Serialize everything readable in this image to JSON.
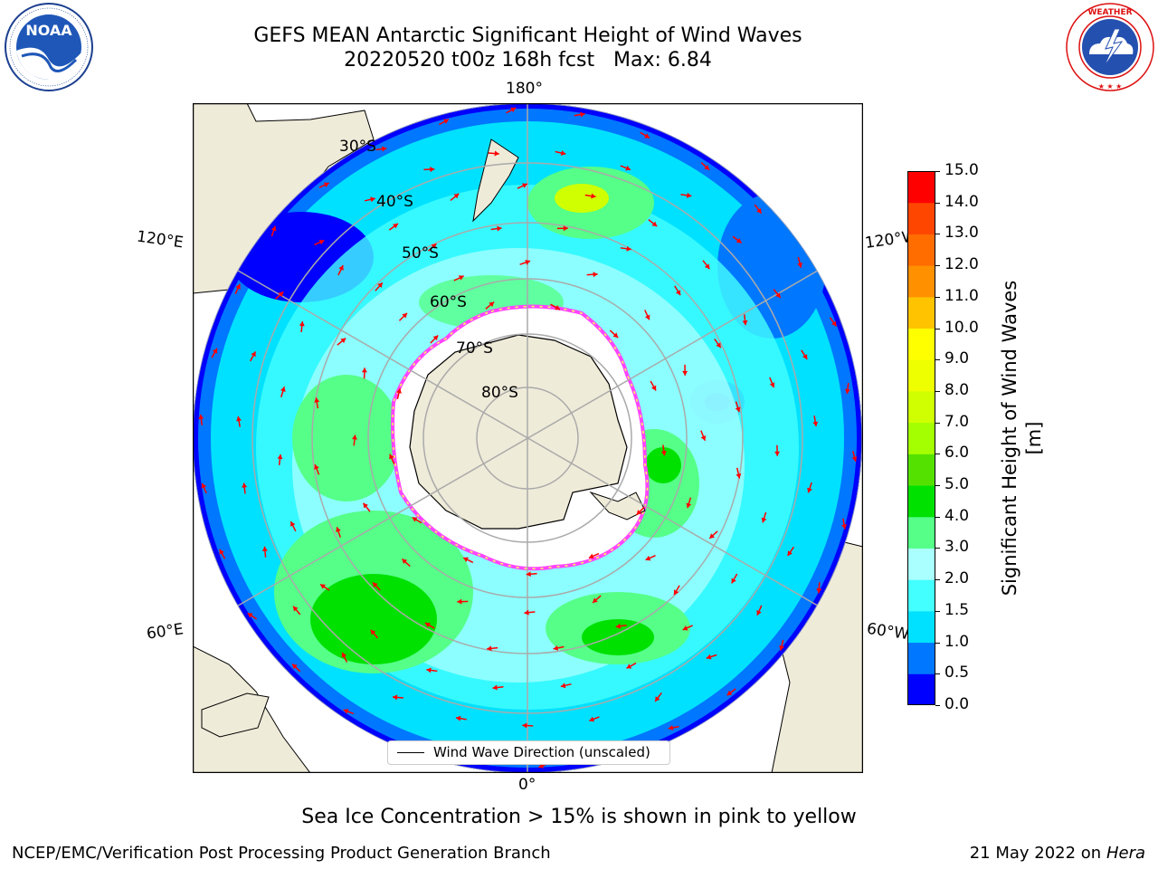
{
  "header": {
    "title_line1": "GEFS MEAN Antarctic Significant Height of Wind Waves",
    "title_line2": "20220520 t00z 168h fcst   Max: 6.84"
  },
  "logos": {
    "left": {
      "name": "NOAA",
      "ring_text": "NATIONAL OCEANIC AND ATMOSPHERIC ADMINISTRATION · U.S. DEPARTMENT OF COMMERCE"
    },
    "right": {
      "name": "NATIONAL WEATHER SERVICE"
    }
  },
  "map": {
    "projection": "south-polar-stereographic",
    "longitude_labels": {
      "top": "180°",
      "upper_left": "120°E",
      "upper_right": "120°W",
      "lower_left": "60°E",
      "lower_right": "60°W",
      "bottom": "0°"
    },
    "latitude_labels": [
      "30°S",
      "40°S",
      "50°S",
      "60°S",
      "70°S",
      "80°S"
    ],
    "land_color": "#efebd9",
    "ice_edge_colors": [
      "#ff44ff",
      "#ffff55"
    ],
    "legend": "Wind Wave Direction (unscaled)",
    "arrow_color": "#ff0000",
    "max_value": 6.84
  },
  "colorbar": {
    "label": "Significant Height of Wind Waves [m]",
    "ticks": [
      "0.0",
      "0.5",
      "1.0",
      "1.5",
      "2.0",
      "3.0",
      "4.0",
      "5.0",
      "6.0",
      "7.0",
      "8.0",
      "9.0",
      "10.0",
      "11.0",
      "12.0",
      "13.0",
      "14.0",
      "15.0"
    ],
    "colors": [
      "#0000ff",
      "#0077ff",
      "#00e1ff",
      "#44ffff",
      "#aaffff",
      "#55ff88",
      "#00e100",
      "#55e100",
      "#a4ff00",
      "#cfff00",
      "#eeff00",
      "#ffff00",
      "#ffc300",
      "#ff9100",
      "#ff6c00",
      "#ff4600",
      "#ff0000"
    ]
  },
  "footer": {
    "subtitle": "Sea Ice Concentration > 15% is shown in pink to yellow",
    "left": "NCEP/EMC/Verification Post Processing Product Generation Branch",
    "right_date": "21 May 2022 on",
    "right_host": "Hera"
  }
}
